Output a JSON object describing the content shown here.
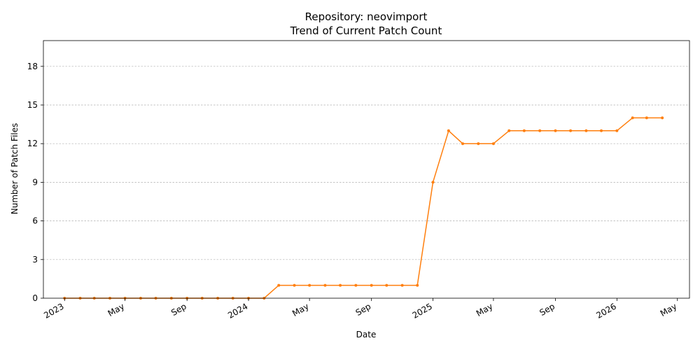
{
  "chart_data": {
    "type": "line",
    "title": "Repository: neovimport",
    "subtitle": "Trend of Current Patch Count",
    "xlabel": "Date",
    "ylabel": "Number of Patch Files",
    "ylim": [
      0,
      20
    ],
    "xlim": [
      "2022-11-20",
      "2026-05-25"
    ],
    "yticks": [
      0,
      3,
      6,
      9,
      12,
      15,
      18
    ],
    "xticks": [
      {
        "date": "2023-01-01",
        "label": "2023"
      },
      {
        "date": "2023-05-01",
        "label": "May"
      },
      {
        "date": "2023-09-01",
        "label": "Sep"
      },
      {
        "date": "2024-01-01",
        "label": "2024"
      },
      {
        "date": "2024-05-01",
        "label": "May"
      },
      {
        "date": "2024-09-01",
        "label": "Sep"
      },
      {
        "date": "2025-01-01",
        "label": "2025"
      },
      {
        "date": "2025-05-01",
        "label": "May"
      },
      {
        "date": "2025-09-01",
        "label": "Sep"
      },
      {
        "date": "2026-01-01",
        "label": "2026"
      },
      {
        "date": "2026-05-01",
        "label": "May"
      }
    ],
    "grid": "y-dashed",
    "line_color": "#ff7f0e",
    "series": [
      {
        "x": [
          "2023-01-01",
          "2023-02-01",
          "2023-03-01",
          "2023-04-01",
          "2023-05-01",
          "2023-06-01",
          "2023-07-01",
          "2023-08-01",
          "2023-09-01",
          "2023-10-01",
          "2023-11-01",
          "2023-12-01",
          "2024-01-01",
          "2024-02-01",
          "2024-03-01",
          "2024-04-01",
          "2024-05-01",
          "2024-06-01",
          "2024-07-01",
          "2024-08-01",
          "2024-09-01",
          "2024-10-01",
          "2024-11-01",
          "2024-12-01",
          "2025-01-01",
          "2025-02-01",
          "2025-03-01",
          "2025-04-01",
          "2025-05-01",
          "2025-06-01",
          "2025-07-01",
          "2025-08-01",
          "2025-09-01",
          "2025-10-01",
          "2025-11-01",
          "2025-12-01",
          "2026-01-01",
          "2026-02-01",
          "2026-03-01",
          "2026-04-01"
        ],
        "values": [
          0,
          0,
          0,
          0,
          0,
          0,
          0,
          0,
          0,
          0,
          0,
          0,
          0,
          0,
          1,
          1,
          1,
          1,
          1,
          1,
          1,
          1,
          1,
          1,
          9,
          13,
          12,
          12,
          12,
          13,
          13,
          13,
          13,
          13,
          13,
          13,
          13,
          14,
          14,
          14
        ]
      }
    ]
  }
}
